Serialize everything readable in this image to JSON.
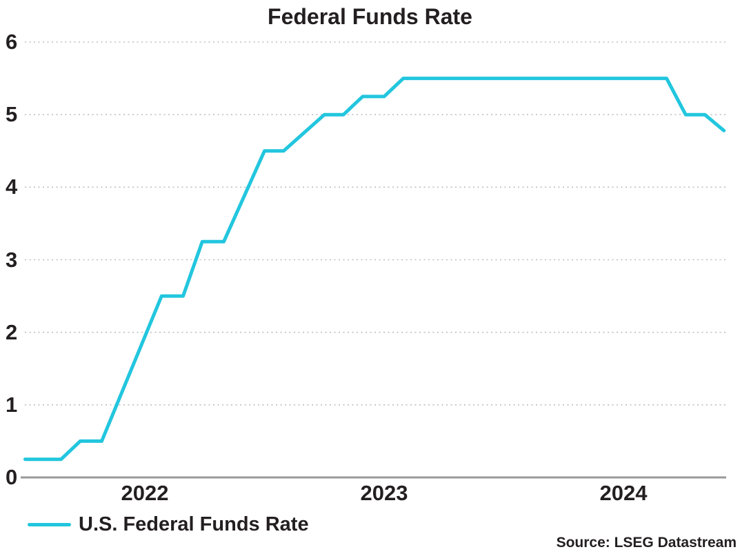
{
  "title": "Federal Funds Rate",
  "legend": {
    "label": "U.S. Federal Funds Rate"
  },
  "source": "Source: LSEG Datastream",
  "colors": {
    "line": "#22C6DE",
    "axis": "#999999",
    "grid": "#BDBDBD",
    "text": "#231F20"
  },
  "chart_data": {
    "type": "line",
    "title": "Federal Funds Rate",
    "xlabel": "",
    "ylabel": "",
    "ylim": [
      0,
      6
    ],
    "xlim": [
      2022.0,
      2024.93
    ],
    "grid": "horizontal-dotted",
    "legend_position": "bottom-left",
    "y_ticks": [
      0,
      1,
      2,
      3,
      4,
      5,
      6
    ],
    "x_ticks": [
      {
        "label": "2022",
        "center": 2022.5
      },
      {
        "label": "2023",
        "center": 2023.5
      },
      {
        "label": "2024",
        "center": 2024.5
      }
    ],
    "series": [
      {
        "name": "U.S. Federal Funds Rate",
        "color": "#22C6DE",
        "points": [
          [
            2022.0,
            0.25
          ],
          [
            2022.15,
            0.25
          ],
          [
            2022.23,
            0.5
          ],
          [
            2022.32,
            0.5
          ],
          [
            2022.57,
            2.5
          ],
          [
            2022.66,
            2.5
          ],
          [
            2022.74,
            3.25
          ],
          [
            2022.83,
            3.25
          ],
          [
            2023.0,
            4.5
          ],
          [
            2023.08,
            4.5
          ],
          [
            2023.25,
            5.0
          ],
          [
            2023.33,
            5.0
          ],
          [
            2023.41,
            5.25
          ],
          [
            2023.5,
            5.25
          ],
          [
            2023.58,
            5.5
          ],
          [
            2024.68,
            5.5
          ],
          [
            2024.76,
            5.0
          ],
          [
            2024.84,
            5.0
          ],
          [
            2024.92,
            4.78
          ]
        ]
      }
    ]
  }
}
